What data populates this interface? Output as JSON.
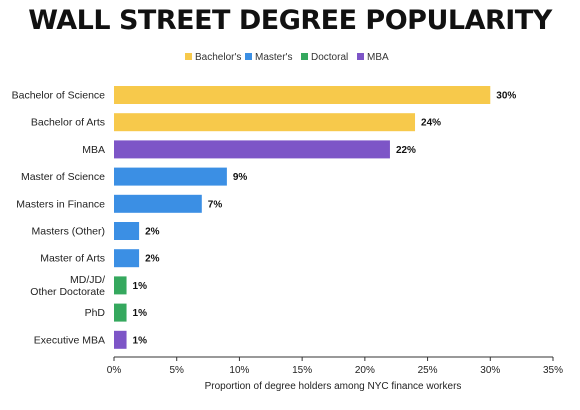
{
  "chart_data": {
    "type": "bar",
    "orientation": "horizontal",
    "title": "WALL STREET DEGREE POPULARITY",
    "xlabel": "Proportion of degree holders among NYC finance workers",
    "ylabel": "",
    "xlim": [
      0,
      35
    ],
    "x_ticks": [
      0,
      5,
      10,
      15,
      20,
      25,
      30,
      35
    ],
    "x_tick_labels": [
      "0%",
      "5%",
      "10%",
      "15%",
      "20%",
      "25%",
      "30%",
      "35%"
    ],
    "grid": false,
    "legend_position": "top",
    "legend": [
      {
        "name": "Bachelor's",
        "color": "#f7c94b"
      },
      {
        "name": "Master's",
        "color": "#3b8fe4"
      },
      {
        "name": "Doctoral",
        "color": "#35a85e"
      },
      {
        "name": "MBA",
        "color": "#7d55c7"
      }
    ],
    "categories": [
      {
        "label": [
          "Bachelor of Science"
        ],
        "value": 30,
        "value_label": "30%",
        "group": "Bachelor's"
      },
      {
        "label": [
          "Bachelor of Arts"
        ],
        "value": 24,
        "value_label": "24%",
        "group": "Bachelor's"
      },
      {
        "label": [
          "MBA"
        ],
        "value": 22,
        "value_label": "22%",
        "group": "MBA"
      },
      {
        "label": [
          "Master of Science"
        ],
        "value": 9,
        "value_label": "9%",
        "group": "Master's"
      },
      {
        "label": [
          "Masters in Finance"
        ],
        "value": 7,
        "value_label": "7%",
        "group": "Master's"
      },
      {
        "label": [
          "Masters (Other)"
        ],
        "value": 2,
        "value_label": "2%",
        "group": "Master's"
      },
      {
        "label": [
          "Master of Arts"
        ],
        "value": 2,
        "value_label": "2%",
        "group": "Master's"
      },
      {
        "label": [
          "MD/JD/",
          "Other Doctorate"
        ],
        "value": 1,
        "value_label": "1%",
        "group": "Doctoral"
      },
      {
        "label": [
          "PhD"
        ],
        "value": 1,
        "value_label": "1%",
        "group": "Doctoral"
      },
      {
        "label": [
          "Executive MBA"
        ],
        "value": 1,
        "value_label": "1%",
        "group": "MBA"
      }
    ]
  }
}
